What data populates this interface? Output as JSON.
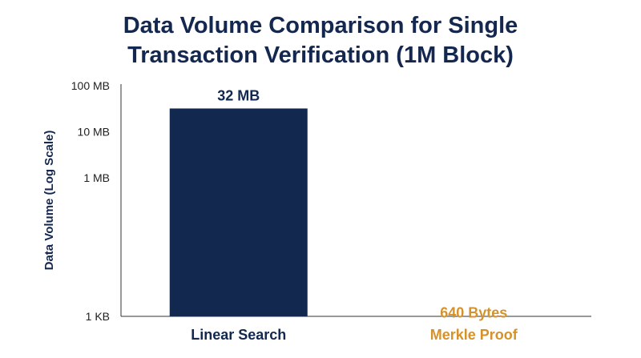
{
  "chart_data": {
    "type": "bar",
    "title_line1": "Data Volume Comparison for Single",
    "title_line2": "Transaction Verification (1M Block)",
    "ylabel": "Data Volume (Log Scale)",
    "xlabel": "",
    "y_scale": "log",
    "y_unit": "bytes",
    "ylim": [
      1024,
      104857600
    ],
    "yticks": [
      {
        "value": 1024,
        "label": "1 KB"
      },
      {
        "value": 1048576,
        "label": "1 MB"
      },
      {
        "value": 10485760,
        "label": "10 MB"
      },
      {
        "value": 104857600,
        "label": "100 MB"
      }
    ],
    "grid": false,
    "categories": [
      "Linear Search",
      "Merkle Proof"
    ],
    "values": [
      33554432,
      640
    ],
    "data_labels": [
      "32 MB",
      "640 Bytes"
    ],
    "colors": [
      "#12284f",
      "#d6922a"
    ]
  }
}
